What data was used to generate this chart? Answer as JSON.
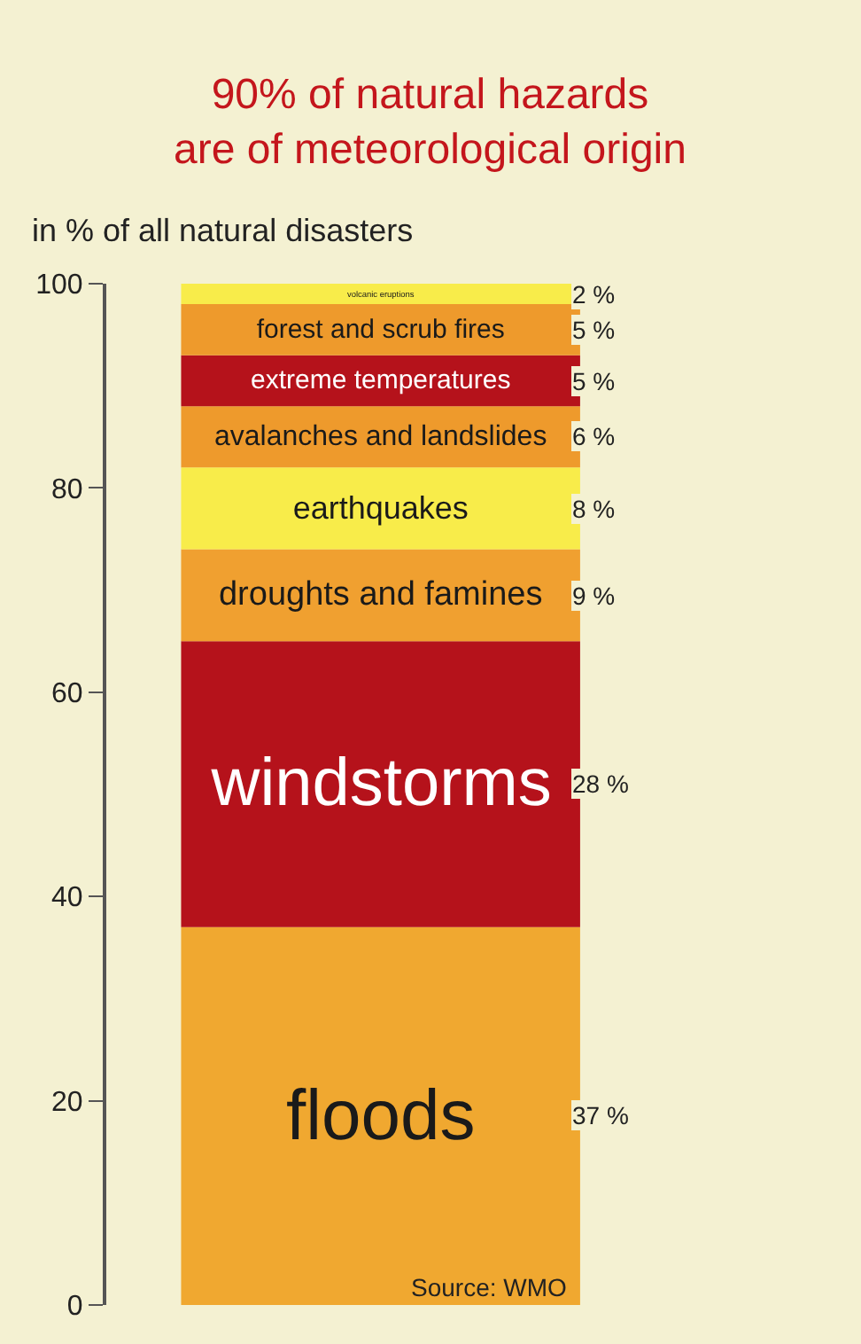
{
  "chart_data": {
    "type": "bar",
    "title": "90% of natural hazards\nare of meteorological origin",
    "subtitle": "in % of all natural disasters",
    "categories": [
      null
    ],
    "stacked": true,
    "legend": false,
    "grid": false,
    "tick_labels": "y",
    "ylim": [
      0,
      100
    ],
    "yticks": [
      0,
      20,
      40,
      60,
      80,
      100
    ],
    "series": [
      {
        "name": "floods",
        "color": "#f0a830",
        "values": [
          37
        ],
        "value_labels": [
          "37 %"
        ]
      },
      {
        "name": "windstorms",
        "color": "#b5121b",
        "values": [
          28
        ],
        "value_labels": [
          "28 %"
        ]
      },
      {
        "name": "droughts and famines",
        "color": "#f0a030",
        "values": [
          9
        ],
        "value_labels": [
          "9 %"
        ]
      },
      {
        "name": "earthquakes",
        "color": "#f8ec4a",
        "values": [
          8
        ],
        "value_labels": [
          "8 %"
        ]
      },
      {
        "name": "avalanches and landslides",
        "color": "#ee9a2c",
        "values": [
          6
        ],
        "value_labels": [
          "6 %"
        ]
      },
      {
        "name": "extreme temperatures",
        "color": "#b5121b",
        "values": [
          5
        ],
        "value_labels": [
          "5 %"
        ]
      },
      {
        "name": "forest and scrub fires",
        "color": "#ee9a2c",
        "values": [
          5
        ],
        "value_labels": [
          "5 %"
        ]
      },
      {
        "name": "volcanic eruptions",
        "color": "#f8ec4a",
        "values": [
          2
        ],
        "value_labels": [
          "2 %"
        ]
      }
    ],
    "annotations": [
      "Source: WMO"
    ]
  }
}
